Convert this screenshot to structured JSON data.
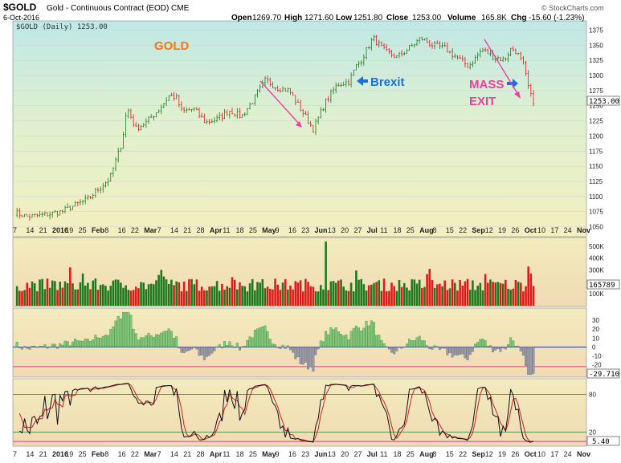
{
  "header": {
    "symbol": "$GOLD",
    "description": "Gold - Continuous Contract (EOD) CME",
    "date": "6-Oct-2016",
    "open_label": "Open",
    "open": "1269.70",
    "high_label": "High",
    "high": "1271.60",
    "low_label": "Low",
    "low": "1251.80",
    "close_label": "Close",
    "close": "1253.00",
    "volume_label": "Volume",
    "volume": "165.8K",
    "chg_label": "Chg",
    "chg": "-15.60 (-1.23%)",
    "watermark": "© StockCharts.com",
    "series_label": "$GOLD (Daily) 1253.00"
  },
  "annotations": {
    "gold": "GOLD",
    "brexit": "Brexit",
    "mass": "MASS",
    "exit": "EXIT",
    "price_tag": "1253.00",
    "volume_tag": "165789",
    "macd_tag": "-29.710",
    "stoch_tag": "5.40"
  },
  "colors": {
    "up": "#1e7a1e",
    "down": "#e01b1b",
    "annotation_orange": "#f07818",
    "annotation_blue": "#1d6fe0",
    "annotation_pink": "#ee3fa0",
    "signal": "#cc2222"
  },
  "chart_data": [
    {
      "type": "candlestick",
      "title": "$GOLD (Daily)",
      "x_ticks": [
        "7",
        "14",
        "21",
        "2016",
        "19",
        "25",
        "Feb",
        "8",
        "16",
        "22",
        "Mar",
        "7",
        "14",
        "21",
        "28",
        "Apr",
        "11",
        "18",
        "25",
        "May",
        "9",
        "16",
        "23",
        "Jun",
        "13",
        "20",
        "27",
        "Jul",
        "11",
        "18",
        "25",
        "Aug",
        "8",
        "15",
        "22",
        "Sep",
        "12",
        "19",
        "26",
        "Oct",
        "10",
        "17",
        "24",
        "Nov"
      ],
      "y_ticks": [
        1050,
        1075,
        1100,
        1125,
        1150,
        1175,
        1200,
        1225,
        1250,
        1275,
        1300,
        1325,
        1350,
        1375
      ],
      "ylim": [
        1040,
        1385
      ],
      "close_path": [
        [
          "2015-12-07",
          1074
        ],
        [
          "2015-12-14",
          1067
        ],
        [
          "2015-12-21",
          1068
        ],
        [
          "2016-01-04",
          1075
        ],
        [
          "2016-01-11",
          1085
        ],
        [
          "2016-01-19",
          1095
        ],
        [
          "2016-01-25",
          1112
        ],
        [
          "2016-02-01",
          1130
        ],
        [
          "2016-02-08",
          1190
        ],
        [
          "2016-02-11",
          1247
        ],
        [
          "2016-02-16",
          1212
        ],
        [
          "2016-02-22",
          1222
        ],
        [
          "2016-03-01",
          1245
        ],
        [
          "2016-03-07",
          1268
        ],
        [
          "2016-03-11",
          1262
        ],
        [
          "2016-03-14",
          1240
        ],
        [
          "2016-03-21",
          1245
        ],
        [
          "2016-03-28",
          1222
        ],
        [
          "2016-04-04",
          1228
        ],
        [
          "2016-04-11",
          1242
        ],
        [
          "2016-04-18",
          1232
        ],
        [
          "2016-04-25",
          1260
        ],
        [
          "2016-05-02",
          1292
        ],
        [
          "2016-05-09",
          1280
        ],
        [
          "2016-05-16",
          1275
        ],
        [
          "2016-05-23",
          1243
        ],
        [
          "2016-05-30",
          1211
        ],
        [
          "2016-06-06",
          1255
        ],
        [
          "2016-06-13",
          1285
        ],
        [
          "2016-06-20",
          1290
        ],
        [
          "2016-06-24",
          1315
        ],
        [
          "2016-06-27",
          1325
        ],
        [
          "2016-07-04",
          1362
        ],
        [
          "2016-07-11",
          1340
        ],
        [
          "2016-07-18",
          1330
        ],
        [
          "2016-07-25",
          1345
        ],
        [
          "2016-08-01",
          1362
        ],
        [
          "2016-08-08",
          1350
        ],
        [
          "2016-08-15",
          1345
        ],
        [
          "2016-08-22",
          1330
        ],
        [
          "2016-08-29",
          1315
        ],
        [
          "2016-09-06",
          1343
        ],
        [
          "2016-09-12",
          1332
        ],
        [
          "2016-09-19",
          1326
        ],
        [
          "2016-09-23",
          1345
        ],
        [
          "2016-09-26",
          1340
        ],
        [
          "2016-09-30",
          1318
        ],
        [
          "2016-10-04",
          1270
        ],
        [
          "2016-10-06",
          1253
        ]
      ],
      "last_close": 1253.0
    },
    {
      "type": "bar",
      "title": "Volume",
      "y_ticks": [
        "100K",
        "200K",
        "300K",
        "400K",
        "500K"
      ],
      "ylim": [
        0,
        560000
      ],
      "last_value": 165789
    },
    {
      "type": "area",
      "title": "MACD Histogram",
      "y_ticks": [
        30,
        20,
        10,
        0,
        -10,
        -20
      ],
      "ylim": [
        -32,
        40
      ],
      "last_value": -29.71
    },
    {
      "type": "line",
      "title": "Stochastic",
      "y_ticks": [
        20,
        80
      ],
      "ylim": [
        0,
        100
      ],
      "last_value": 5.4
    }
  ]
}
